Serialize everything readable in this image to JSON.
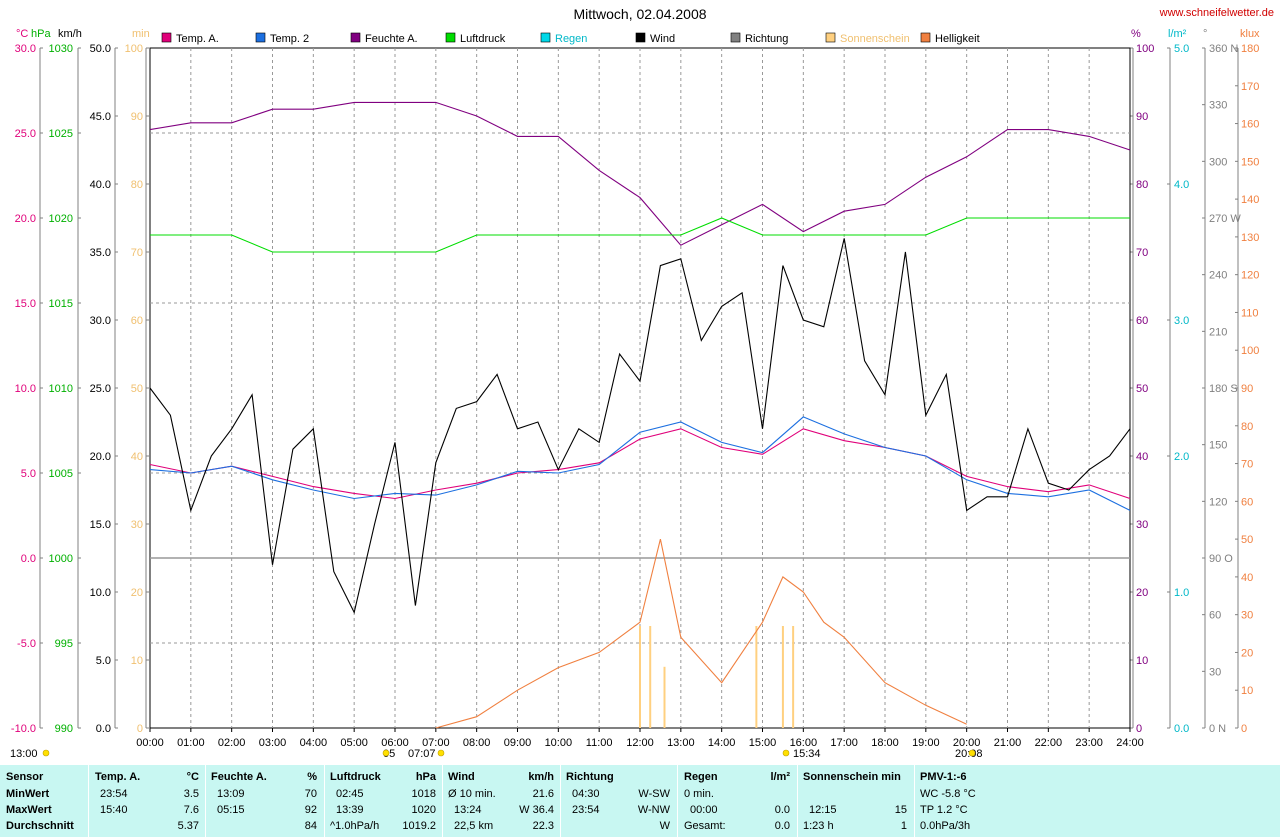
{
  "title": "Mittwoch, 02.04.2008",
  "site": "www.schneifelwetter.de",
  "legend": [
    {
      "name": "Temp. A.",
      "color": "#e0007a"
    },
    {
      "name": "Temp. 2",
      "color": "#1c6fe0"
    },
    {
      "name": "Feuchte A.",
      "color": "#800080"
    },
    {
      "name": "Luftdruck",
      "color": "#00dd00"
    },
    {
      "name": "Regen",
      "color": "#00d8e8"
    },
    {
      "name": "Wind",
      "color": "#000000"
    },
    {
      "name": "Richtung",
      "color": "#808080"
    },
    {
      "name": "Sonnenschein",
      "color": "#ffd080"
    },
    {
      "name": "Helligkeit",
      "color": "#f08040"
    }
  ],
  "units_left": [
    "°C",
    "hPa",
    "km/h",
    "min"
  ],
  "units_right": [
    "%",
    "l/m²",
    "°",
    "klux"
  ],
  "axes": {
    "temp": [
      "30.0",
      "25.0",
      "20.0",
      "15.0",
      "10.0",
      "5.0",
      "0.0",
      "-5.0",
      "-10.0"
    ],
    "hpa": [
      "1030",
      "1025",
      "1020",
      "1015",
      "1010",
      "1005",
      "1000",
      "995",
      "990"
    ],
    "kmh": [
      "50.0",
      "45.0",
      "40.0",
      "35.0",
      "30.0",
      "25.0",
      "20.0",
      "15.0",
      "10.0",
      "5.0",
      "0.0"
    ],
    "min": [
      "100",
      "90",
      "80",
      "70",
      "60",
      "50",
      "40",
      "30",
      "20",
      "10",
      "0"
    ],
    "pct": [
      "100",
      "90",
      "80",
      "70",
      "60",
      "50",
      "40",
      "30",
      "20",
      "10",
      "0"
    ],
    "rain": [
      "5.0",
      "4.0",
      "3.0",
      "2.0",
      "1.0",
      "0.0"
    ],
    "deg": [
      "360 N",
      "330",
      "300",
      "270 W",
      "240",
      "210",
      "180 S",
      "150",
      "120",
      "90 O",
      "60",
      "30",
      "0 N"
    ],
    "klux": [
      "180",
      "170",
      "160",
      "150",
      "140",
      "130",
      "120",
      "110",
      "100",
      "90",
      "80",
      "70",
      "60",
      "50",
      "40",
      "30",
      "20",
      "10",
      "0"
    ]
  },
  "x_ticks": [
    "00:00",
    "01:00",
    "02:00",
    "03:00",
    "04:00",
    "05:00",
    "06:00",
    "07:00",
    "08:00",
    "09:00",
    "10:00",
    "11:00",
    "12:00",
    "13:00",
    "14:00",
    "15:00",
    "16:00",
    "17:00",
    "18:00",
    "19:00",
    "20:00",
    "21:00",
    "22:00",
    "23:00",
    "24:00"
  ],
  "sun_marks": [
    "13:00",
    "05",
    "07:07",
    "15:34",
    "20:08"
  ],
  "chart_data": {
    "type": "line",
    "title": "Mittwoch, 02.04.2008",
    "x_range_hours": [
      0,
      24
    ],
    "series": [
      {
        "name": "Temp. A.",
        "unit": "°C",
        "color": "#e0007a",
        "x": [
          0,
          1,
          2,
          3,
          4,
          5,
          6,
          7,
          8,
          9,
          10,
          11,
          12,
          13,
          14,
          15,
          16,
          17,
          18,
          19,
          20,
          21,
          22,
          23,
          24
        ],
        "y": [
          5.5,
          5.0,
          5.4,
          4.8,
          4.2,
          3.8,
          3.5,
          4.0,
          4.4,
          5.0,
          5.2,
          5.6,
          7.0,
          7.6,
          6.5,
          6.1,
          7.6,
          6.9,
          6.5,
          6.0,
          4.8,
          4.2,
          3.9,
          4.3,
          3.5
        ]
      },
      {
        "name": "Temp. 2",
        "unit": "°C",
        "color": "#1c6fe0",
        "x": [
          0,
          1,
          2,
          3,
          4,
          5,
          6,
          7,
          8,
          9,
          10,
          11,
          12,
          13,
          14,
          15,
          16,
          17,
          18,
          19,
          20,
          21,
          22,
          23,
          24
        ],
        "y": [
          5.2,
          5.0,
          5.4,
          4.6,
          4.0,
          3.5,
          3.8,
          3.7,
          4.3,
          5.1,
          5.0,
          5.5,
          7.4,
          8.0,
          6.8,
          6.2,
          8.3,
          7.3,
          6.5,
          6.0,
          4.6,
          3.8,
          3.6,
          4.0,
          2.8
        ]
      },
      {
        "name": "Feuchte A.",
        "unit": "%",
        "color": "#800080",
        "x": [
          0,
          1,
          2,
          3,
          4,
          5,
          6,
          7,
          8,
          9,
          10,
          11,
          12,
          13,
          14,
          15,
          16,
          17,
          18,
          19,
          20,
          21,
          22,
          23,
          24
        ],
        "y": [
          88,
          89,
          89,
          91,
          91,
          92,
          92,
          92,
          90,
          87,
          87,
          82,
          78,
          71,
          74,
          77,
          73,
          76,
          77,
          81,
          84,
          88,
          88,
          87,
          85
        ]
      },
      {
        "name": "Luftdruck",
        "unit": "hPa",
        "color": "#00dd00",
        "x": [
          0,
          1,
          2,
          3,
          4,
          5,
          6,
          7,
          8,
          9,
          10,
          11,
          12,
          13,
          14,
          15,
          16,
          17,
          18,
          19,
          20,
          21,
          22,
          23,
          24
        ],
        "y": [
          1019,
          1019,
          1019,
          1018,
          1018,
          1018,
          1018,
          1018,
          1019,
          1019,
          1019,
          1019,
          1019,
          1019,
          1020,
          1019,
          1019,
          1019,
          1019,
          1019,
          1020,
          1020,
          1020,
          1020,
          1020
        ]
      },
      {
        "name": "Wind",
        "unit": "km/h",
        "color": "#000000",
        "x": [
          0,
          0.5,
          1,
          1.5,
          2,
          2.5,
          3,
          3.5,
          4,
          4.5,
          5,
          5.5,
          6,
          6.5,
          7,
          7.5,
          8,
          8.5,
          9,
          9.5,
          10,
          10.5,
          11,
          11.5,
          12,
          12.5,
          13,
          13.5,
          14,
          14.5,
          15,
          15.5,
          16,
          16.5,
          17,
          17.5,
          18,
          18.5,
          19,
          19.5,
          20,
          20.5,
          21,
          21.5,
          22,
          22.5,
          23,
          23.5,
          24
        ],
        "y": [
          25,
          23,
          16,
          20,
          22,
          24.5,
          12,
          20.5,
          22,
          11.5,
          8.5,
          15,
          21,
          9,
          19.5,
          23.5,
          24,
          26,
          22,
          22.5,
          19,
          22,
          21,
          27.5,
          25.5,
          34,
          34.5,
          28.5,
          31,
          32,
          22,
          34,
          30,
          29.5,
          36,
          27,
          24.5,
          35,
          23,
          26,
          16,
          17,
          17,
          22,
          18,
          17.5,
          19,
          20,
          22
        ]
      },
      {
        "name": "Helligkeit",
        "unit": "klux",
        "color": "#f08040",
        "x": [
          7,
          8,
          9,
          10,
          11,
          12,
          12.5,
          13,
          14,
          15,
          15.5,
          16,
          16.5,
          17,
          18,
          19,
          20
        ],
        "y": [
          0,
          3,
          10,
          16,
          20,
          28,
          50,
          24,
          12,
          28,
          40,
          36,
          28,
          24,
          12,
          6,
          1
        ]
      }
    ],
    "sunshine_bars": [
      {
        "x": 12.0,
        "min": 15
      },
      {
        "x": 12.25,
        "min": 15
      },
      {
        "x": 12.6,
        "min": 9
      },
      {
        "x": 14.85,
        "min": 15
      },
      {
        "x": 15.5,
        "min": 15
      },
      {
        "x": 15.75,
        "min": 15
      }
    ]
  },
  "table": {
    "rows": [
      "Sensor",
      "MinWert",
      "MaxWert",
      "Durchschnitt"
    ],
    "temp": {
      "h": "Temp. A.",
      "u": "°C",
      "min_t": "23:54",
      "min_v": "3.5",
      "max_t": "15:40",
      "max_v": "7.6",
      "avg": "5.37"
    },
    "hum": {
      "h": "Feuchte A.",
      "u": "%",
      "min_t": "13:09",
      "min_v": "70",
      "max_t": "05:15",
      "max_v": "92",
      "avg": "84"
    },
    "press": {
      "h": "Luftdruck",
      "u": "hPa",
      "min_t": "02:45",
      "min_v": "1018",
      "max_t": "13:39",
      "max_v": "1020",
      "avg_t": "^1.0hPa/h",
      "avg": "1019.2"
    },
    "wind": {
      "h": "Wind",
      "u": "km/h",
      "r1a": "Ø 10 min.",
      "r1b": "21.6",
      "r2a": "13:24",
      "r2b": "W 36.4",
      "r3a": "22,5 km",
      "r3b": "22.3"
    },
    "dir": {
      "h": "Richtung",
      "r1a": "04:30",
      "r1b": "W-SW",
      "r2a": "23:54",
      "r2b": "W-NW",
      "r3b": "W"
    },
    "rain": {
      "h": "Regen",
      "u": "l/m²",
      "r1a": "0 min.",
      "r2a": "00:00",
      "r2b": "0.0",
      "r3a": "Gesamt:",
      "r3b": "0.0"
    },
    "sun": {
      "h": "Sonnenschein min",
      "r2a": "12:15",
      "r2b": "15",
      "r3a": "1:23 h",
      "r3b": "1"
    },
    "pmv": {
      "h": "PMV-1:-6",
      "r1": "WC -5.8 °C",
      "r2": "TP 1.2 °C",
      "r3": "0.0hPa/3h"
    }
  }
}
